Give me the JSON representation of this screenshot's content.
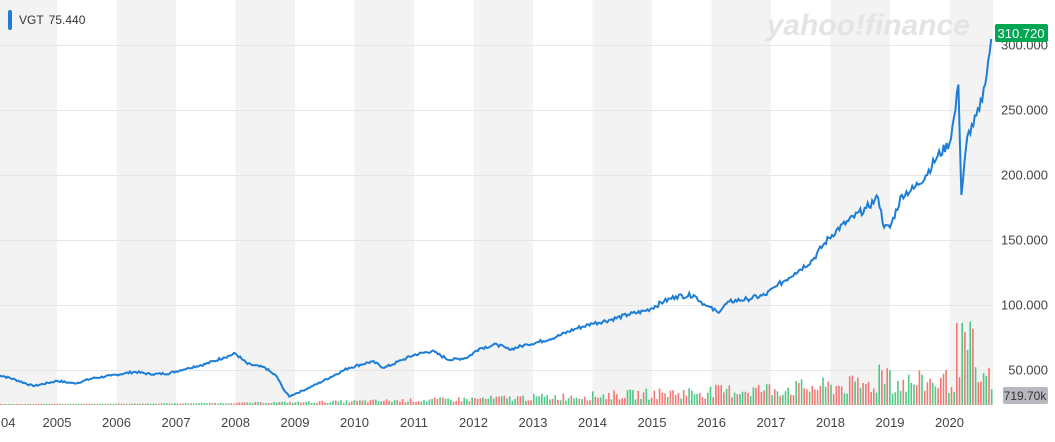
{
  "legend": {
    "symbol": "VGT",
    "value": "75.440",
    "color": "#1e7ed6"
  },
  "watermark": "yahoo!finance",
  "colors": {
    "line": "#1e7ed6",
    "price_badge": "#00a651",
    "volume_badge": "#b8b8c0",
    "volume_up": "#2fbf71",
    "volume_down": "#f0625d",
    "band": "#f3f3f3",
    "grid": "#e6e6e6"
  },
  "chart_data": {
    "type": "line",
    "series": [
      {
        "name": "VGT",
        "x": [
          2004.0,
          2004.3,
          2004.6,
          2005.0,
          2005.3,
          2005.6,
          2005.9,
          2006.3,
          2006.6,
          2006.9,
          2007.2,
          2007.5,
          2007.8,
          2008.0,
          2008.2,
          2008.5,
          2008.7,
          2008.8,
          2008.9,
          2009.0,
          2009.3,
          2009.6,
          2009.9,
          2010.3,
          2010.5,
          2010.8,
          2011.0,
          2011.3,
          2011.6,
          2011.9,
          2012.1,
          2012.4,
          2012.6,
          2012.9,
          2013.1,
          2013.4,
          2013.7,
          2014.0,
          2014.3,
          2014.6,
          2014.9,
          2015.2,
          2015.4,
          2015.7,
          2015.9,
          2016.1,
          2016.3,
          2016.6,
          2016.9,
          2017.1,
          2017.4,
          2017.7,
          2017.9,
          2018.1,
          2018.3,
          2018.6,
          2018.8,
          2018.9,
          2019.0,
          2019.2,
          2019.4,
          2019.6,
          2019.8,
          2020.0,
          2020.1,
          2020.15,
          2020.2,
          2020.3,
          2020.5,
          2020.6,
          2020.7
        ],
        "values": [
          47,
          43,
          38,
          42,
          40,
          44,
          46,
          49,
          47,
          48,
          52,
          55,
          60,
          63,
          55,
          52,
          45,
          36,
          30,
          32,
          38,
          45,
          52,
          57,
          52,
          58,
          62,
          65,
          58,
          60,
          67,
          70,
          66,
          70,
          72,
          76,
          82,
          86,
          89,
          93,
          96,
          103,
          107,
          108,
          100,
          95,
          103,
          105,
          108,
          115,
          125,
          135,
          148,
          158,
          165,
          175,
          183,
          160,
          160,
          185,
          190,
          200,
          215,
          225,
          250,
          270,
          185,
          230,
          250,
          270,
          305
        ]
      }
    ],
    "x_ticks": [
      "04",
      "2005",
      "2006",
      "2007",
      "2008",
      "2009",
      "2010",
      "2011",
      "2012",
      "2013",
      "2014",
      "2015",
      "2016",
      "2017",
      "2018",
      "2019",
      "2020"
    ],
    "y_ticks": [
      "50.000",
      "100.000",
      "150.000",
      "200.000",
      "250.000",
      "300.000"
    ],
    "last_price": "310.720",
    "last_volume": "719.70k",
    "volume_axis_max": 10
  }
}
